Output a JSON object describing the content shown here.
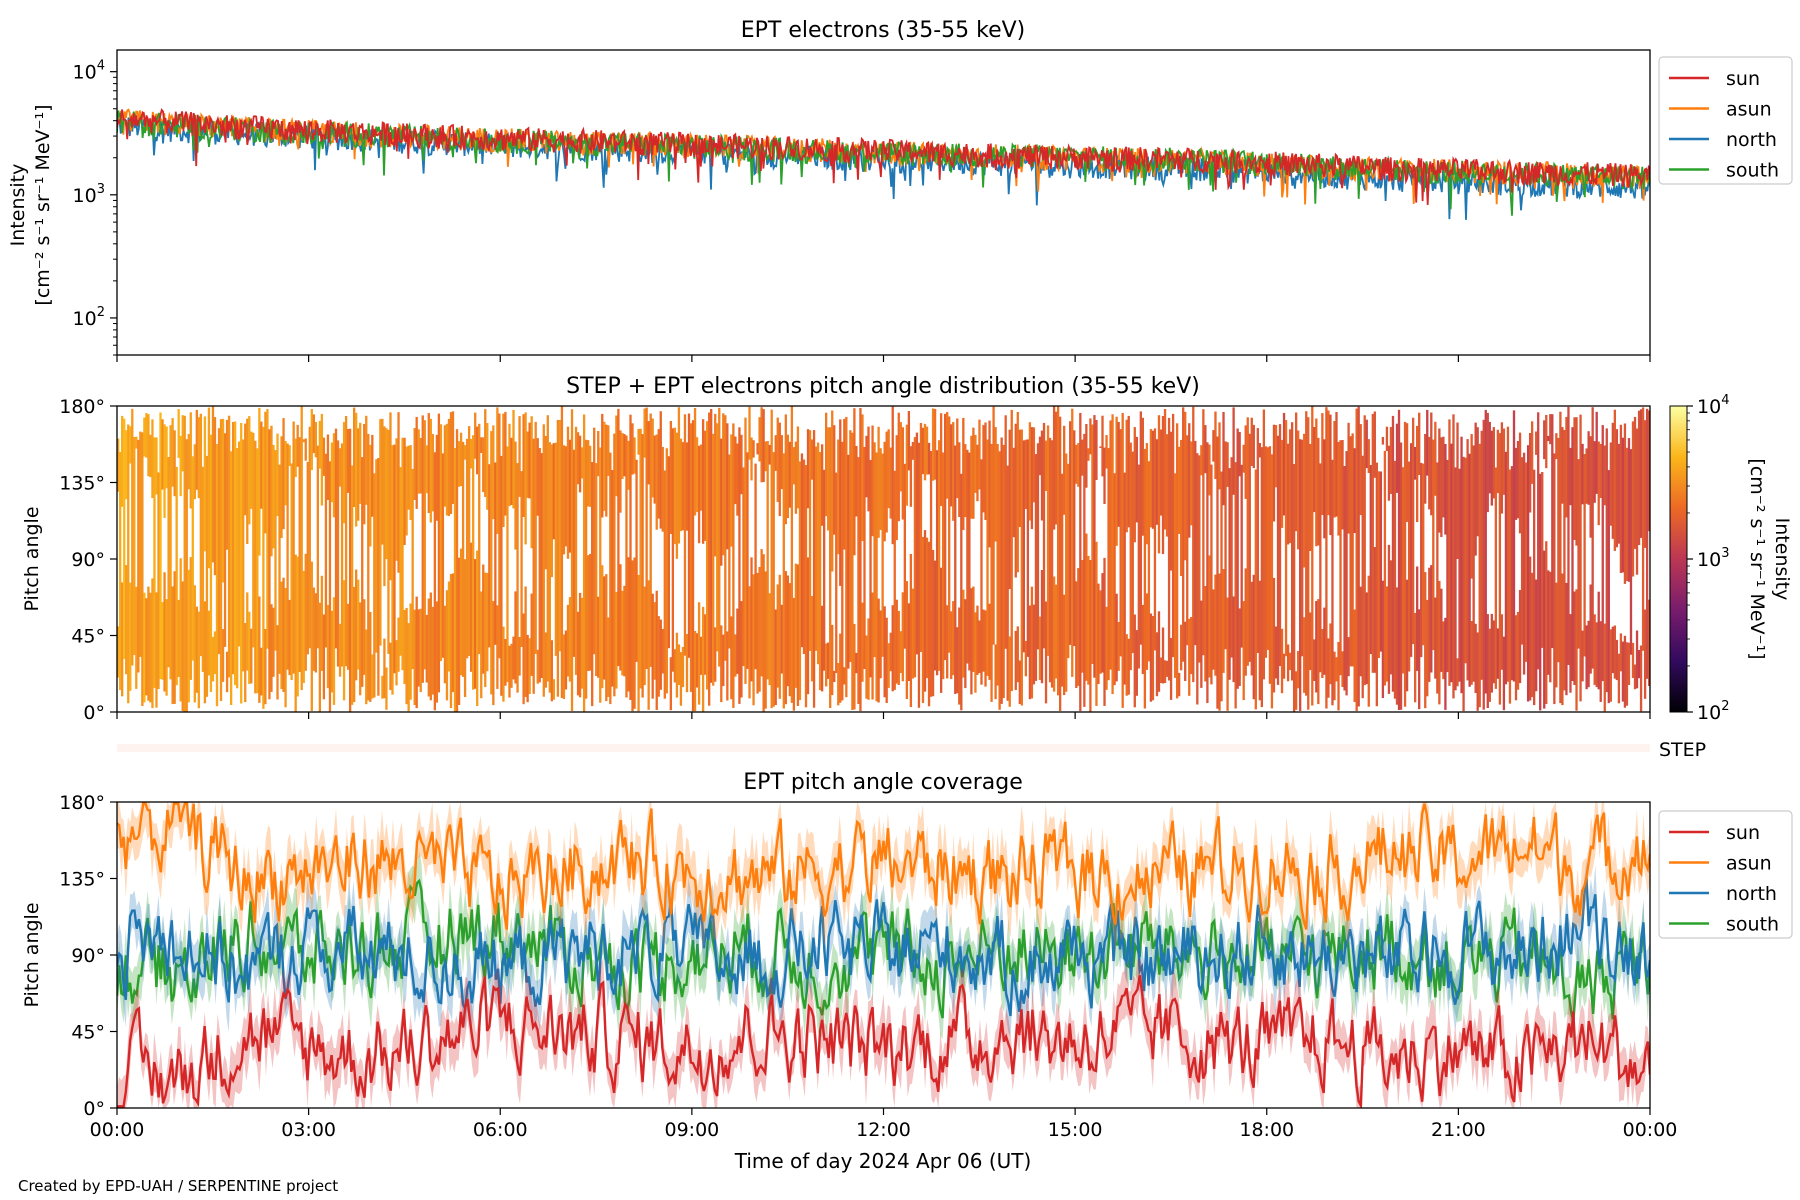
{
  "credit": "Created by EPD-UAH / SERPENTINE project",
  "shared_xaxis": {
    "label": "Time of day 2024 Apr 06 (UT)",
    "unit": "hours",
    "range": [
      0,
      24
    ],
    "ticks": [
      0,
      3,
      6,
      9,
      12,
      15,
      18,
      21,
      24
    ],
    "tick_labels": [
      "00:00",
      "03:00",
      "06:00",
      "09:00",
      "12:00",
      "15:00",
      "18:00",
      "21:00",
      "00:00"
    ]
  },
  "series_colors": {
    "sun": "#d62728",
    "asun": "#ff7f0e",
    "north": "#1f77b4",
    "south": "#2ca02c"
  },
  "chart_data": [
    {
      "type": "line",
      "title": "EPT electrons (35-55 keV)",
      "ylabel_line1": "Intensity",
      "ylabel_line2": "[cm⁻² s⁻¹ sr⁻¹ MeV⁻¹]",
      "yscale": "log",
      "ylim": [
        50,
        15000
      ],
      "yticks": [
        100,
        1000,
        10000
      ],
      "ytick_labels": [
        {
          "base": "10",
          "exp": "2"
        },
        {
          "base": "10",
          "exp": "3"
        },
        {
          "base": "10",
          "exp": "4"
        }
      ],
      "legend": "outside-right",
      "x": [
        0,
        1,
        2,
        3,
        4,
        5,
        6,
        7,
        8,
        9,
        10,
        11,
        12,
        13,
        14,
        15,
        16,
        17,
        18,
        19,
        20,
        21,
        22,
        23,
        24
      ],
      "series": [
        {
          "name": "sun",
          "values": [
            4200,
            3900,
            3600,
            3400,
            3200,
            3050,
            2900,
            2800,
            2700,
            2600,
            2500,
            2400,
            2300,
            2200,
            2100,
            2050,
            2000,
            1950,
            1850,
            1750,
            1650,
            1600,
            1550,
            1500,
            1450
          ]
        },
        {
          "name": "asun",
          "values": [
            4100,
            3800,
            3500,
            3300,
            3150,
            3000,
            2850,
            2700,
            2650,
            2550,
            2450,
            2350,
            2250,
            2150,
            2100,
            2000,
            1950,
            1900,
            1800,
            1700,
            1620,
            1580,
            1520,
            1480,
            1420
          ]
        },
        {
          "name": "north",
          "values": [
            3700,
            3400,
            3200,
            3000,
            2850,
            2700,
            2550,
            2450,
            2350,
            2250,
            2150,
            2050,
            1950,
            1900,
            1800,
            1750,
            1700,
            1650,
            1550,
            1450,
            1350,
            1300,
            1250,
            1200,
            1150
          ]
        },
        {
          "name": "south",
          "values": [
            4000,
            3700,
            3450,
            3250,
            3100,
            2950,
            2800,
            2700,
            2600,
            2500,
            2400,
            2300,
            2250,
            2150,
            2100,
            2050,
            2000,
            1950,
            1850,
            1700,
            1600,
            1550,
            1500,
            1450,
            1400
          ]
        }
      ]
    },
    {
      "type": "heatmap",
      "title": "STEP + EPT electrons pitch angle distribution (35-55 keV)",
      "ylabel": "Pitch angle",
      "ylim": [
        0,
        180
      ],
      "yticks": [
        0,
        45,
        90,
        135,
        180
      ],
      "ytick_labels": [
        "0°",
        "45°",
        "90°",
        "135°",
        "180°"
      ],
      "colorbar": {
        "label_line1": "Intensity",
        "label_line2": "[cm⁻² s⁻¹ sr⁻¹ MeV⁻¹]",
        "scale": "log",
        "range": [
          100,
          10000
        ],
        "tick_labels": [
          {
            "base": "10",
            "exp": "2"
          },
          {
            "base": "10",
            "exp": "3"
          },
          {
            "base": "10",
            "exp": "4"
          }
        ],
        "colormap": "inferno",
        "stops": [
          "#000004",
          "#320a5e",
          "#781c6d",
          "#bc3754",
          "#ed6925",
          "#fbb61a",
          "#fcffa4"
        ]
      },
      "mean_intensity_x": [
        0,
        3,
        6,
        9,
        12,
        15,
        18,
        21,
        24
      ],
      "mean_intensity": [
        3900,
        3200,
        2850,
        2550,
        2250,
        2050,
        1850,
        1550,
        1450
      ]
    },
    {
      "type": "heatmap",
      "label": "STEP",
      "note": "empty strip"
    },
    {
      "type": "line",
      "title": "EPT pitch angle coverage",
      "ylabel": "Pitch angle",
      "ylim": [
        0,
        180
      ],
      "yticks": [
        0,
        45,
        90,
        135,
        180
      ],
      "ytick_labels": [
        "0°",
        "45°",
        "90°",
        "135°",
        "180°"
      ],
      "legend": "outside-right",
      "x": [
        0,
        1,
        2,
        3,
        4,
        5,
        6,
        7,
        8,
        9,
        10,
        11,
        12,
        13,
        14,
        15,
        16,
        17,
        18,
        19,
        20,
        21,
        22,
        23,
        24
      ],
      "series": [
        {
          "name": "sun",
          "values": [
            20,
            18,
            45,
            35,
            30,
            40,
            50,
            45,
            40,
            35,
            45,
            40,
            35,
            40,
            45,
            40,
            45,
            40,
            35,
            40,
            30,
            35,
            25,
            40,
            20
          ]
        },
        {
          "name": "asun",
          "values": [
            160,
            165,
            135,
            140,
            145,
            140,
            130,
            140,
            145,
            140,
            135,
            140,
            145,
            140,
            135,
            140,
            135,
            140,
            145,
            140,
            150,
            145,
            155,
            140,
            160
          ]
        },
        {
          "name": "north",
          "values": [
            95,
            100,
            80,
            95,
            90,
            85,
            80,
            90,
            95,
            90,
            85,
            95,
            90,
            95,
            85,
            90,
            85,
            90,
            95,
            90,
            85,
            95,
            90,
            110,
            90
          ]
        },
        {
          "name": "south",
          "values": [
            85,
            80,
            100,
            90,
            95,
            100,
            105,
            90,
            85,
            90,
            95,
            85,
            90,
            85,
            95,
            90,
            95,
            90,
            85,
            90,
            95,
            85,
            90,
            70,
            90
          ]
        }
      ]
    }
  ]
}
